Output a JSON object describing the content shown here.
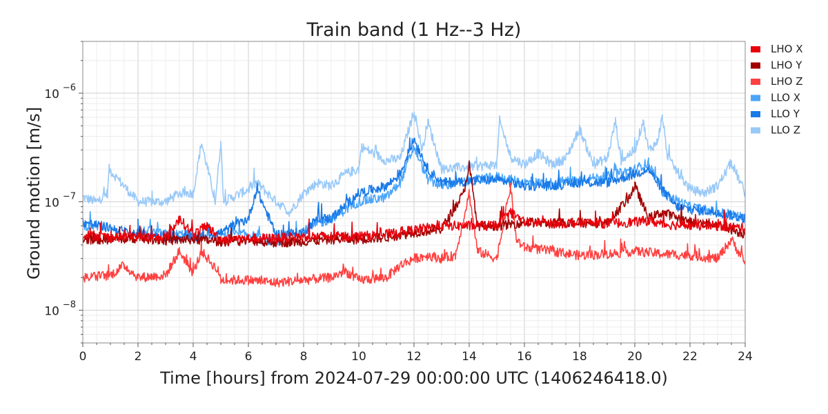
{
  "chart_data": {
    "type": "line",
    "title": "Train band (1 Hz--3 Hz)",
    "xlabel": "Time [hours] from 2024-07-29 00:00:00 UTC (1406246418.0)",
    "ylabel": "Ground motion [m/s]",
    "xlim": [
      0,
      24
    ],
    "ylim": [
      5e-09,
      3e-06
    ],
    "yscale": "log",
    "grid": true,
    "legend_position": "outside-right-top",
    "x_ticks": [
      {
        "value": 0,
        "label": "0"
      },
      {
        "value": 2,
        "label": "2"
      },
      {
        "value": 4,
        "label": "4"
      },
      {
        "value": 6,
        "label": "6"
      },
      {
        "value": 8,
        "label": "8"
      },
      {
        "value": 10,
        "label": "10"
      },
      {
        "value": 12,
        "label": "12"
      },
      {
        "value": 14,
        "label": "14"
      },
      {
        "value": 16,
        "label": "16"
      },
      {
        "value": 18,
        "label": "18"
      },
      {
        "value": 20,
        "label": "20"
      },
      {
        "value": 22,
        "label": "22"
      },
      {
        "value": 24,
        "label": "24"
      }
    ],
    "y_ticks": [
      {
        "value": 1e-08,
        "base": "10",
        "exp": "−8"
      },
      {
        "value": 1e-07,
        "base": "10",
        "exp": "−7"
      },
      {
        "value": 1e-06,
        "base": "10",
        "exp": "−6"
      }
    ],
    "series": [
      {
        "name": "LHO X",
        "color": "#e8000b",
        "x": [
          0,
          1,
          2,
          3,
          3.5,
          4,
          4.5,
          5,
          6,
          7,
          8,
          9,
          10,
          11,
          12,
          13,
          14,
          15,
          15.5,
          16,
          17,
          18,
          19,
          20,
          20.5,
          21,
          22,
          23,
          24
        ],
        "y": [
          5e-08,
          4.7e-08,
          4.8e-08,
          4.6e-08,
          7e-08,
          5e-08,
          6e-08,
          4.5e-08,
          4.6e-08,
          4.6e-08,
          4.8e-08,
          4.8e-08,
          4.8e-08,
          5e-08,
          5.5e-08,
          6e-08,
          6e-08,
          6e-08,
          8e-08,
          6.5e-08,
          6.3e-08,
          6.4e-08,
          6.3e-08,
          6.5e-08,
          6.7e-08,
          6.2e-08,
          6e-08,
          6e-08,
          5.7e-08
        ]
      },
      {
        "name": "LHO Y",
        "color": "#a00000",
        "x": [
          0,
          1,
          2,
          3,
          4,
          5,
          6,
          7,
          8,
          9,
          10,
          11,
          12,
          13,
          13.8,
          14,
          14.3,
          15,
          15.5,
          16,
          17,
          18,
          19,
          19.8,
          20,
          20.5,
          21,
          22,
          23,
          24
        ],
        "y": [
          4.5e-08,
          4.5e-08,
          4.6e-08,
          4.4e-08,
          4.5e-08,
          4.3e-08,
          4.4e-08,
          4.2e-08,
          4.3e-08,
          4.5e-08,
          4.5e-08,
          4.7e-08,
          5.2e-08,
          5.6e-08,
          1.2e-07,
          2.2e-07,
          6e-08,
          6e-08,
          6.2e-08,
          6.5e-08,
          6.3e-08,
          6.5e-08,
          6.4e-08,
          1.1e-07,
          1.4e-07,
          7e-08,
          8e-08,
          6.5e-08,
          6.2e-08,
          5e-08
        ]
      },
      {
        "name": "LHO Z",
        "color": "#ff4040",
        "x": [
          0,
          1,
          1.5,
          2,
          3,
          3.5,
          4,
          4.3,
          4.9,
          5,
          6,
          7,
          8,
          9,
          9.5,
          10,
          11,
          11.5,
          12,
          12.5,
          13,
          13.5,
          14,
          14.3,
          15,
          15.5,
          15.7,
          16,
          17,
          18,
          19,
          20,
          21,
          22,
          23,
          23.5,
          24
        ],
        "y": [
          2e-08,
          2.1e-08,
          2.6e-08,
          2e-08,
          2.1e-08,
          3.5e-08,
          2.2e-08,
          3.5e-08,
          2.3e-08,
          1.9e-08,
          1.9e-08,
          1.8e-08,
          1.9e-08,
          2e-08,
          2.3e-08,
          1.9e-08,
          2e-08,
          2.6e-08,
          3e-08,
          3.2e-08,
          3e-08,
          3.2e-08,
          1.2e-07,
          3.5e-08,
          3e-08,
          1.4e-07,
          4.5e-08,
          3.8e-08,
          3.5e-08,
          3.2e-08,
          3.3e-08,
          3.5e-08,
          3.3e-08,
          3.2e-08,
          3e-08,
          4.5e-08,
          2.7e-08
        ]
      },
      {
        "name": "LLO X",
        "color": "#4ba6fb",
        "x": [
          0,
          0.8,
          0.9,
          2,
          3,
          4,
          4.3,
          5,
          6,
          6.5,
          7,
          8,
          9,
          10,
          11,
          11.5,
          12,
          12.5,
          13,
          15,
          15.5,
          16,
          17,
          18,
          19,
          20,
          20.5,
          21,
          22,
          23,
          24
        ],
        "y": [
          6e-08,
          6e-08,
          null,
          5.5e-08,
          5e-08,
          5e-08,
          null,
          5e-08,
          5e-08,
          4.5e-08,
          4.2e-08,
          5.5e-08,
          7e-08,
          1e-07,
          1.1e-07,
          1.5e-07,
          3.2e-07,
          1.6e-07,
          1.4e-07,
          1.7e-07,
          1.6e-07,
          1.5e-07,
          1.5e-07,
          1.6e-07,
          1.7e-07,
          2e-07,
          2.3e-07,
          1.2e-07,
          9e-08,
          8e-08,
          7.2e-08
        ]
      },
      {
        "name": "LLO Y",
        "color": "#1a7ae8",
        "x": [
          0,
          0.9,
          2,
          3,
          4,
          5,
          6,
          6.3,
          7,
          8,
          8.5,
          9,
          10,
          11,
          11.5,
          12,
          12.5,
          13,
          15,
          15.5,
          16,
          17,
          18,
          19,
          20,
          20.5,
          21,
          21.5,
          22,
          23,
          24
        ],
        "y": [
          6.5e-08,
          5.8e-08,
          5e-08,
          4.8e-08,
          4.6e-08,
          5.2e-08,
          7e-08,
          1.3e-07,
          5e-08,
          5.2e-08,
          7e-08,
          7e-08,
          1.2e-07,
          1.4e-07,
          1.8e-07,
          3.8e-07,
          2e-07,
          1.5e-07,
          1.6e-07,
          1.5e-07,
          1.4e-07,
          1.4e-07,
          1.5e-07,
          1.5e-07,
          1.8e-07,
          2e-07,
          1.3e-07,
          9e-08,
          8.5e-08,
          8e-08,
          7e-08
        ]
      },
      {
        "name": "LLO Z",
        "color": "#99c9f8",
        "x": [
          0,
          0.5,
          0.9,
          0.95,
          2,
          3,
          3.5,
          4,
          4.3,
          4.8,
          5,
          5.1,
          6,
          6.3,
          7,
          7.5,
          8,
          8.5,
          9,
          9.5,
          10,
          10.1,
          11,
          11.5,
          12,
          12.3,
          12.5,
          13,
          15,
          15.1,
          15.5,
          16,
          16.5,
          17,
          17.5,
          18,
          18.5,
          19,
          19.3,
          19.5,
          20,
          20.3,
          20.5,
          20.8,
          21,
          21.2,
          22,
          22.5,
          23,
          23.5,
          24
        ],
        "y": [
          1.1e-07,
          1e-07,
          1.2e-07,
          2e-07,
          1e-07,
          1e-07,
          1.2e-07,
          1.2e-07,
          3.5e-07,
          1e-07,
          3.6e-07,
          1e-07,
          1.3e-07,
          1.5e-07,
          1e-07,
          8e-08,
          1.2e-07,
          1.5e-07,
          1.4e-07,
          1.8e-07,
          2e-07,
          3.2e-07,
          2.4e-07,
          2.5e-07,
          6.8e-07,
          3e-07,
          5.5e-07,
          2e-07,
          2.2e-07,
          5.6e-07,
          2.6e-07,
          2.2e-07,
          2.8e-07,
          2.2e-07,
          2.5e-07,
          4.7e-07,
          2.2e-07,
          2.5e-07,
          5.5e-07,
          2.4e-07,
          3e-07,
          5.5e-07,
          3e-07,
          3.5e-07,
          6e-07,
          2.5e-07,
          1.3e-07,
          1.2e-07,
          1.4e-07,
          2.3e-07,
          1.2e-07
        ]
      }
    ]
  }
}
